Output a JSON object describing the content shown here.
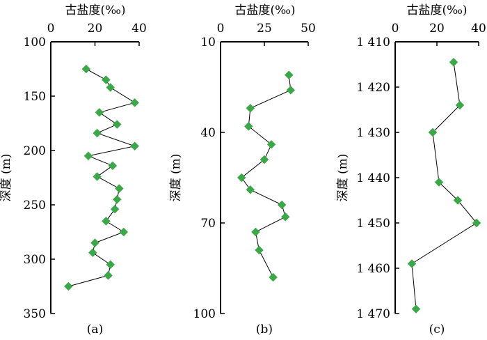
{
  "figure": {
    "panel_labels": [
      "(a)",
      "(b)",
      "(c)"
    ]
  },
  "chart_data": [
    {
      "type": "scatter",
      "title": "",
      "xlabel": "古盐度(‰)",
      "ylabel": "深度 (m)",
      "xlim": [
        0,
        40
      ],
      "ylim": [
        100,
        350
      ],
      "y_inverted": true,
      "xticks": [
        "0",
        "20",
        "40"
      ],
      "yticks": [
        "100",
        "150",
        "200",
        "250",
        "300",
        "350"
      ],
      "marker": "diamond",
      "connected": true,
      "color": "#3aa846",
      "panel_label": "(a)",
      "series": [
        {
          "x": [
            16,
            25,
            27,
            38,
            22,
            30,
            21,
            38,
            17,
            28,
            21,
            31,
            30,
            29,
            25,
            33,
            20,
            19,
            27,
            26,
            8
          ],
          "y": [
            125,
            135,
            142,
            156,
            165,
            176,
            184,
            196,
            205,
            214,
            224,
            235,
            245,
            254,
            265,
            275,
            285,
            294,
            305,
            315,
            325
          ]
        }
      ]
    },
    {
      "type": "scatter",
      "title": "",
      "xlabel": "古盐度(‰)",
      "ylabel": "深度 (m)",
      "xlim": [
        0,
        50
      ],
      "ylim": [
        10,
        100
      ],
      "y_inverted": true,
      "xticks": [
        "0",
        "25",
        "50"
      ],
      "yticks": [
        "10",
        "40",
        "70",
        "100"
      ],
      "marker": "diamond",
      "connected": true,
      "color": "#3aa846",
      "panel_label": "(b)",
      "series": [
        {
          "x": [
            39,
            40,
            17,
            16,
            29,
            25,
            12,
            17,
            35,
            37,
            20,
            22,
            30
          ],
          "y": [
            21,
            26,
            32,
            38,
            44,
            49,
            55,
            59,
            64,
            68,
            73,
            79,
            88
          ]
        }
      ]
    },
    {
      "type": "scatter",
      "title": "",
      "xlabel": "古盐度(‰)",
      "ylabel": "深度 (m)",
      "xlim": [
        0,
        40
      ],
      "ylim": [
        1410,
        1470
      ],
      "y_inverted": true,
      "xticks": [
        "0",
        "20",
        "40"
      ],
      "yticks": [
        "1 410",
        "1 420",
        "1 430",
        "1 440",
        "1 450",
        "1 460",
        "1 470"
      ],
      "marker": "diamond",
      "connected": true,
      "color": "#3aa846",
      "panel_label": "(c)",
      "series": [
        {
          "x": [
            28,
            31,
            18,
            21,
            30,
            39,
            8,
            10
          ],
          "y": [
            1414.5,
            1424,
            1430,
            1441,
            1445,
            1450,
            1459,
            1469
          ]
        }
      ]
    }
  ]
}
